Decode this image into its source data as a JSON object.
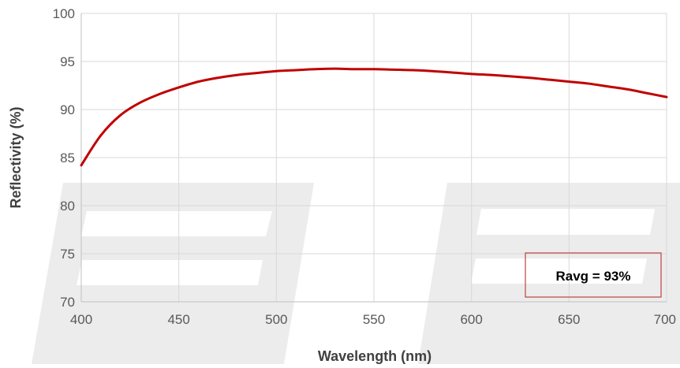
{
  "chart_data": {
    "type": "line",
    "xlabel": "Wavelength (nm)",
    "ylabel": "Reflectivity (%)",
    "xlim": [
      400,
      700
    ],
    "ylim": [
      70,
      100
    ],
    "xticks": [
      400,
      450,
      500,
      550,
      600,
      650,
      700
    ],
    "yticks": [
      70,
      75,
      80,
      85,
      90,
      95,
      100
    ],
    "grid": true,
    "annotation": "Ravg = 93%",
    "series": [
      {
        "color": "#c00000",
        "x": [
          400,
          410,
          420,
          430,
          440,
          450,
          460,
          470,
          480,
          490,
          500,
          510,
          520,
          530,
          540,
          550,
          560,
          570,
          580,
          590,
          600,
          610,
          620,
          630,
          640,
          650,
          660,
          670,
          680,
          690,
          700
        ],
        "y": [
          84.2,
          87.3,
          89.4,
          90.7,
          91.6,
          92.3,
          92.9,
          93.3,
          93.6,
          93.8,
          94.0,
          94.1,
          94.2,
          94.25,
          94.2,
          94.2,
          94.15,
          94.1,
          94.0,
          93.85,
          93.7,
          93.6,
          93.45,
          93.3,
          93.1,
          92.9,
          92.7,
          92.4,
          92.1,
          91.7,
          91.3
        ]
      }
    ]
  }
}
